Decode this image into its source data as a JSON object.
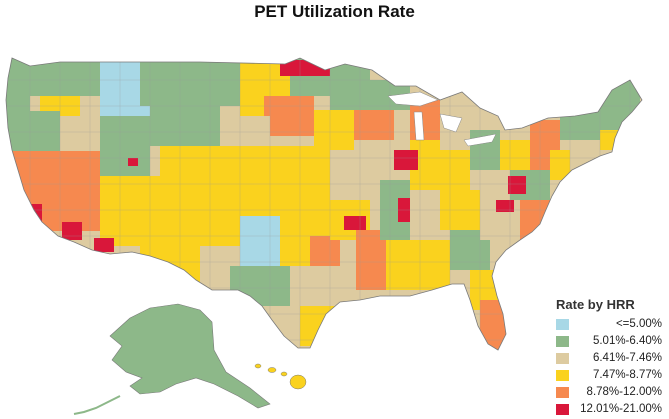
{
  "title": "PET Utilization Rate",
  "legend": {
    "title": "Rate by HRR",
    "bins": [
      {
        "label": "<=5.00%",
        "color": "#a8d8e6"
      },
      {
        "label": "5.01%-6.40%",
        "color": "#8db889"
      },
      {
        "label": "6.41%-7.46%",
        "color": "#ddcba0"
      },
      {
        "label": "7.47%-8.77%",
        "color": "#fad21e"
      },
      {
        "label": "8.78%-12.00%",
        "color": "#f6894f"
      },
      {
        "label": "12.01%-21.00%",
        "color": "#d9173a"
      }
    ]
  },
  "map": {
    "region": "United States (contiguous) with Alaska and Hawaii insets",
    "border_color": "#7a7a7a"
  }
}
